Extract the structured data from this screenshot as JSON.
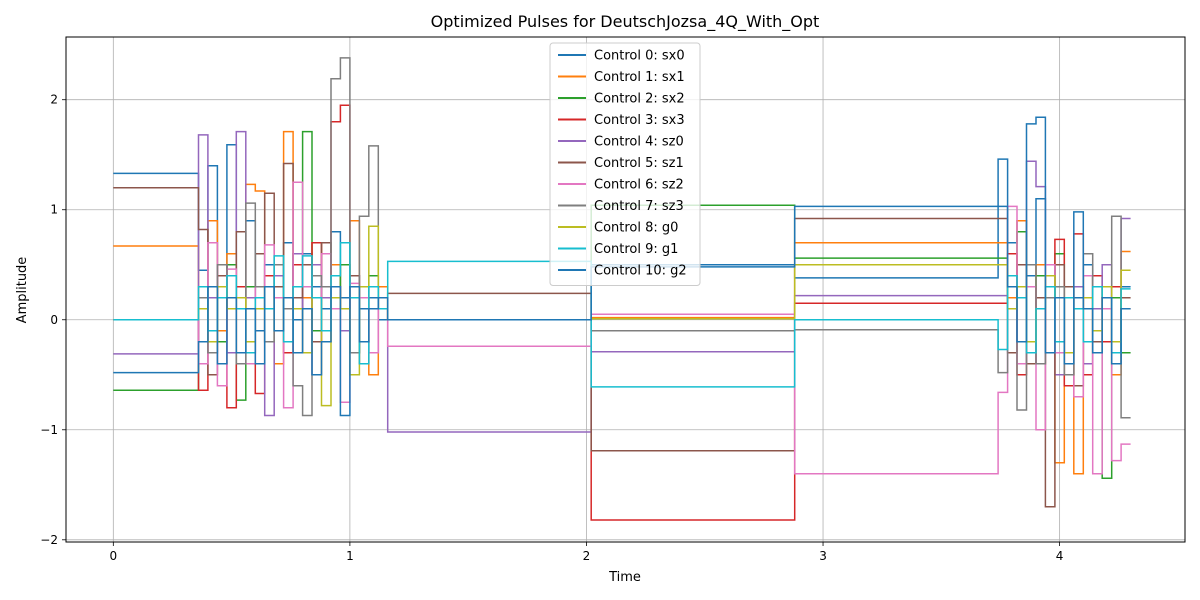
{
  "chart_data": {
    "type": "line",
    "title": "Optimized Pulses for DeutschJozsa_4Q_With_Opt",
    "xlabel": "Time",
    "ylabel": "Amplitude",
    "xlim": [
      -0.2,
      4.53
    ],
    "ylim": [
      -2.02,
      2.57
    ],
    "xticks": [
      0,
      1,
      2,
      3,
      4
    ],
    "yticks": [
      -2,
      -1,
      0,
      1,
      2
    ],
    "xtick_labels": [
      "0",
      "1",
      "2",
      "3",
      "4"
    ],
    "ytick_labels": [
      "−2",
      "−1",
      "0",
      "1",
      "2"
    ],
    "grid": true,
    "legend_position": "top-center",
    "step_style": "post",
    "series": [
      {
        "name": "Control 0: sx0",
        "color": "#1f77b4",
        "x": [
          0,
          0.36,
          0.4,
          0.44,
          0.48,
          0.52,
          0.56,
          0.6,
          0.64,
          0.68,
          0.72,
          0.76,
          0.8,
          0.84,
          0.88,
          0.92,
          0.96,
          1.0,
          1.04,
          1.08,
          1.12,
          1.16,
          2.02,
          2.88,
          3.74,
          3.78,
          3.82,
          3.86,
          3.9,
          3.94,
          3.98,
          4.02,
          4.06,
          4.1,
          4.14,
          4.18,
          4.22,
          4.26,
          4.3
        ],
        "y": [
          1.33,
          0.45,
          1.4,
          0.2,
          1.59,
          0.1,
          0.9,
          -0.1,
          0.5,
          0.2,
          0.7,
          0.0,
          0.6,
          0.3,
          0.1,
          0.8,
          0.2,
          -0.3,
          0.1,
          0.2,
          0.0,
          0.0,
          0.5,
          0.38,
          1.46,
          0.7,
          0.9,
          0.4,
          1.1,
          0.5,
          0.2,
          -0.3,
          0.2,
          0.5,
          0.1,
          0.3,
          -0.2,
          0.3,
          0.3
        ]
      },
      {
        "name": "Control 1: sx1",
        "color": "#ff7f0e",
        "x": [
          0,
          0.36,
          0.4,
          0.44,
          0.48,
          0.52,
          0.56,
          0.6,
          0.64,
          0.68,
          0.72,
          0.76,
          0.8,
          0.84,
          0.88,
          0.92,
          0.96,
          1.0,
          1.04,
          1.08,
          1.12,
          1.16,
          2.02,
          2.88,
          3.74,
          3.78,
          3.82,
          3.86,
          3.9,
          3.94,
          3.98,
          4.02,
          4.06,
          4.1,
          4.14,
          4.18,
          4.22,
          4.26,
          4.3
        ],
        "y": [
          0.67,
          0.2,
          0.9,
          -0.1,
          0.6,
          0.3,
          1.23,
          1.17,
          0.3,
          -0.4,
          1.71,
          0.5,
          0.2,
          0.7,
          -0.2,
          0.5,
          0.1,
          0.9,
          0.2,
          -0.5,
          0.3,
          0.0,
          0.02,
          0.7,
          0.7,
          0.2,
          0.9,
          -0.3,
          0.5,
          0.3,
          -1.3,
          0.3,
          -1.4,
          0.4,
          -0.3,
          0.2,
          -0.5,
          0.62,
          0.62
        ]
      },
      {
        "name": "Control 2: sx2",
        "color": "#2ca02c",
        "x": [
          0,
          0.36,
          0.4,
          0.44,
          0.48,
          0.52,
          0.56,
          0.6,
          0.64,
          0.68,
          0.72,
          0.76,
          0.8,
          0.84,
          0.88,
          0.92,
          0.96,
          1.0,
          1.04,
          1.08,
          1.12,
          1.16,
          2.02,
          2.88,
          3.74,
          3.78,
          3.82,
          3.86,
          3.9,
          3.94,
          3.98,
          4.02,
          4.06,
          4.1,
          4.14,
          4.18,
          4.22,
          4.26,
          4.3
        ],
        "y": [
          -0.64,
          0.1,
          0.3,
          -0.2,
          0.5,
          -0.73,
          0.3,
          0.6,
          -0.2,
          0.4,
          0.1,
          0.6,
          1.71,
          -0.1,
          0.3,
          0.2,
          0.5,
          -0.3,
          0.2,
          0.4,
          0.1,
          0.0,
          1.04,
          0.56,
          0.56,
          0.1,
          0.8,
          -0.2,
          0.4,
          0.2,
          0.6,
          -0.5,
          0.3,
          -0.4,
          0.4,
          -1.44,
          0.2,
          -0.3,
          -0.3
        ]
      },
      {
        "name": "Control 3: sx3",
        "color": "#d62728",
        "x": [
          0,
          0.36,
          0.4,
          0.44,
          0.48,
          0.52,
          0.56,
          0.6,
          0.64,
          0.68,
          0.72,
          0.76,
          0.8,
          0.84,
          0.88,
          0.92,
          0.96,
          1.0,
          1.04,
          1.08,
          1.12,
          1.16,
          2.02,
          2.88,
          3.74,
          3.78,
          3.82,
          3.86,
          3.9,
          3.94,
          3.98,
          4.02,
          4.06,
          4.1,
          4.14,
          4.18,
          4.22,
          4.26,
          4.3
        ],
        "y": [
          0.0,
          -0.64,
          0.2,
          0.5,
          -0.8,
          0.3,
          0.1,
          -0.67,
          0.4,
          0.2,
          -0.3,
          0.5,
          0.1,
          0.7,
          0.3,
          1.8,
          1.95,
          0.2,
          -0.4,
          0.3,
          0.1,
          0.0,
          -1.82,
          0.15,
          0.15,
          0.6,
          -0.5,
          0.3,
          -0.4,
          0.2,
          0.73,
          -0.6,
          0.78,
          -0.5,
          0.4,
          -0.2,
          0.3,
          0.1,
          0.1
        ]
      },
      {
        "name": "Control 4: sz0",
        "color": "#9467bd",
        "x": [
          0,
          0.36,
          0.4,
          0.44,
          0.48,
          0.52,
          0.56,
          0.6,
          0.64,
          0.68,
          0.72,
          0.76,
          0.8,
          0.84,
          0.88,
          0.92,
          0.96,
          1.0,
          1.04,
          1.08,
          1.12,
          1.16,
          2.02,
          2.88,
          3.74,
          3.78,
          3.82,
          3.86,
          3.9,
          3.94,
          3.98,
          4.02,
          4.06,
          4.1,
          4.14,
          4.18,
          4.22,
          4.26,
          4.3
        ],
        "y": [
          -0.31,
          1.68,
          0.2,
          0.5,
          -0.3,
          1.71,
          0.2,
          0.6,
          -0.87,
          0.4,
          0.1,
          0.6,
          -0.3,
          0.5,
          0.2,
          0.3,
          -0.1,
          0.4,
          0.2,
          -0.3,
          0.1,
          -1.02,
          -0.29,
          0.22,
          0.22,
          0.4,
          -0.2,
          1.44,
          1.21,
          0.3,
          -0.5,
          0.2,
          0.3,
          -0.4,
          0.1,
          0.5,
          -0.3,
          0.92,
          0.92
        ]
      },
      {
        "name": "Control 5: sz1",
        "color": "#8c564b",
        "x": [
          0,
          0.36,
          0.4,
          0.44,
          0.48,
          0.52,
          0.56,
          0.6,
          0.64,
          0.68,
          0.72,
          0.76,
          0.8,
          0.84,
          0.88,
          0.92,
          0.96,
          1.0,
          1.04,
          1.08,
          1.12,
          1.16,
          2.02,
          2.88,
          3.74,
          3.78,
          3.82,
          3.86,
          3.9,
          3.94,
          3.98,
          4.02,
          4.06,
          4.1,
          4.14,
          4.18,
          4.22,
          4.26,
          4.3
        ],
        "y": [
          1.2,
          0.82,
          -0.5,
          0.4,
          0.2,
          0.8,
          -0.3,
          0.6,
          1.15,
          0.3,
          1.42,
          0.2,
          0.5,
          -0.2,
          0.7,
          0.3,
          0.1,
          0.4,
          -0.2,
          0.3,
          0.1,
          0.24,
          -1.19,
          0.92,
          0.92,
          -0.3,
          0.5,
          -0.4,
          0.2,
          -1.7,
          0.5,
          0.3,
          -0.6,
          0.4,
          -0.2,
          0.3,
          -0.4,
          0.2,
          0.2
        ]
      },
      {
        "name": "Control 6: sz2",
        "color": "#e377c2",
        "x": [
          0,
          0.36,
          0.4,
          0.44,
          0.48,
          0.52,
          0.56,
          0.6,
          0.64,
          0.68,
          0.72,
          0.76,
          0.8,
          0.84,
          0.88,
          0.92,
          0.96,
          1.0,
          1.04,
          1.08,
          1.12,
          1.16,
          2.02,
          2.88,
          3.74,
          3.78,
          3.82,
          3.86,
          3.9,
          3.94,
          3.98,
          4.02,
          4.06,
          4.1,
          4.14,
          4.18,
          4.22,
          4.26,
          4.3
        ],
        "y": [
          0.0,
          -0.4,
          0.7,
          -0.6,
          0.46,
          0.1,
          -0.4,
          0.3,
          0.68,
          0.2,
          -0.8,
          1.25,
          0.3,
          -0.5,
          0.6,
          0.1,
          -0.75,
          0.33,
          0.2,
          -0.3,
          0.1,
          -0.24,
          0.05,
          -1.4,
          -0.66,
          1.03,
          -0.4,
          0.3,
          -1.0,
          0.5,
          -0.3,
          0.2,
          -0.7,
          0.4,
          -1.4,
          0.1,
          -1.28,
          -1.13,
          -1.13
        ]
      },
      {
        "name": "Control 7: sz3",
        "color": "#7f7f7f",
        "x": [
          0,
          0.36,
          0.4,
          0.44,
          0.48,
          0.52,
          0.56,
          0.6,
          0.64,
          0.68,
          0.72,
          0.76,
          0.8,
          0.84,
          0.88,
          0.92,
          0.96,
          1.0,
          1.04,
          1.08,
          1.12,
          1.16,
          2.02,
          2.88,
          3.74,
          3.78,
          3.82,
          3.86,
          3.9,
          3.94,
          3.98,
          4.02,
          4.06,
          4.1,
          4.14,
          4.18,
          4.22,
          4.26,
          4.3
        ],
        "y": [
          0.0,
          0.2,
          -0.3,
          0.5,
          0.1,
          -0.4,
          1.06,
          0.3,
          -0.2,
          0.5,
          0.1,
          -0.6,
          -0.87,
          0.4,
          0.3,
          2.19,
          2.38,
          -0.3,
          0.94,
          1.58,
          0.1,
          0.0,
          -0.1,
          -0.09,
          -0.48,
          0.3,
          -0.82,
          0.5,
          -0.4,
          0.2,
          0.3,
          -0.5,
          0.1,
          0.6,
          -0.3,
          0.2,
          0.94,
          -0.89,
          -0.89
        ]
      },
      {
        "name": "Control 8: g0",
        "color": "#bcbd22",
        "x": [
          0,
          0.36,
          0.4,
          0.44,
          0.48,
          0.52,
          0.56,
          0.6,
          0.64,
          0.68,
          0.72,
          0.76,
          0.8,
          0.84,
          0.88,
          0.92,
          0.96,
          1.0,
          1.04,
          1.08,
          1.12,
          1.16,
          2.02,
          2.88,
          3.74,
          3.78,
          3.82,
          3.86,
          3.9,
          3.94,
          3.98,
          4.02,
          4.06,
          4.1,
          4.14,
          4.18,
          4.22,
          4.26,
          4.3
        ],
        "y": [
          0.0,
          0.1,
          -0.2,
          0.3,
          0.1,
          0.2,
          -0.2,
          0.1,
          0.3,
          -0.1,
          0.2,
          0.1,
          -0.3,
          0.2,
          -0.78,
          0.2,
          0.1,
          -0.5,
          0.3,
          0.85,
          0.2,
          0.0,
          0.01,
          0.5,
          0.5,
          0.1,
          0.3,
          -0.2,
          0.1,
          0.4,
          0.2,
          -0.3,
          0.1,
          0.2,
          -0.1,
          0.3,
          -0.2,
          0.45,
          0.45
        ]
      },
      {
        "name": "Control 9: g1",
        "color": "#17becf",
        "x": [
          0,
          0.36,
          0.4,
          0.44,
          0.48,
          0.52,
          0.56,
          0.6,
          0.64,
          0.68,
          0.72,
          0.76,
          0.8,
          0.84,
          0.88,
          0.92,
          0.96,
          1.0,
          1.04,
          1.08,
          1.12,
          1.16,
          2.02,
          2.88,
          3.74,
          3.78,
          3.82,
          3.86,
          3.9,
          3.94,
          3.98,
          4.02,
          4.06,
          4.1,
          4.14,
          4.18,
          4.22,
          4.26,
          4.3
        ],
        "y": [
          0.0,
          0.3,
          -0.1,
          0.2,
          0.4,
          0.1,
          -0.3,
          0.2,
          0.1,
          0.58,
          -0.2,
          0.3,
          0.58,
          0.2,
          -0.1,
          0.4,
          0.7,
          0.2,
          -0.4,
          0.3,
          0.1,
          0.53,
          -0.61,
          0.0,
          -0.27,
          0.4,
          0.2,
          -0.3,
          0.1,
          0.3,
          -0.2,
          0.2,
          0.1,
          -0.2,
          0.3,
          0.2,
          -0.3,
          0.28,
          0.28
        ]
      },
      {
        "name": "Control 10: g2",
        "color": "#1f77b4",
        "x": [
          0,
          0.36,
          0.4,
          0.44,
          0.48,
          0.52,
          0.56,
          0.6,
          0.64,
          0.68,
          0.72,
          0.76,
          0.8,
          0.84,
          0.88,
          0.92,
          0.96,
          1.0,
          1.04,
          1.08,
          1.12,
          1.16,
          2.02,
          2.88,
          3.74,
          3.78,
          3.82,
          3.86,
          3.9,
          3.94,
          3.98,
          4.02,
          4.06,
          4.1,
          4.14,
          4.18,
          4.22,
          4.26,
          4.3
        ],
        "y": [
          -0.48,
          -0.2,
          0.3,
          -0.4,
          0.2,
          -0.3,
          0.1,
          -0.4,
          0.3,
          -0.1,
          0.2,
          -0.3,
          0.1,
          -0.5,
          -0.2,
          0.3,
          -0.87,
          0.3,
          -0.2,
          0.1,
          0.2,
          0.0,
          0.48,
          1.03,
          1.03,
          0.3,
          -0.2,
          1.78,
          1.84,
          -0.3,
          0.2,
          -0.4,
          0.98,
          0.1,
          -0.3,
          0.2,
          -0.4,
          0.1,
          0.1
        ]
      }
    ]
  }
}
